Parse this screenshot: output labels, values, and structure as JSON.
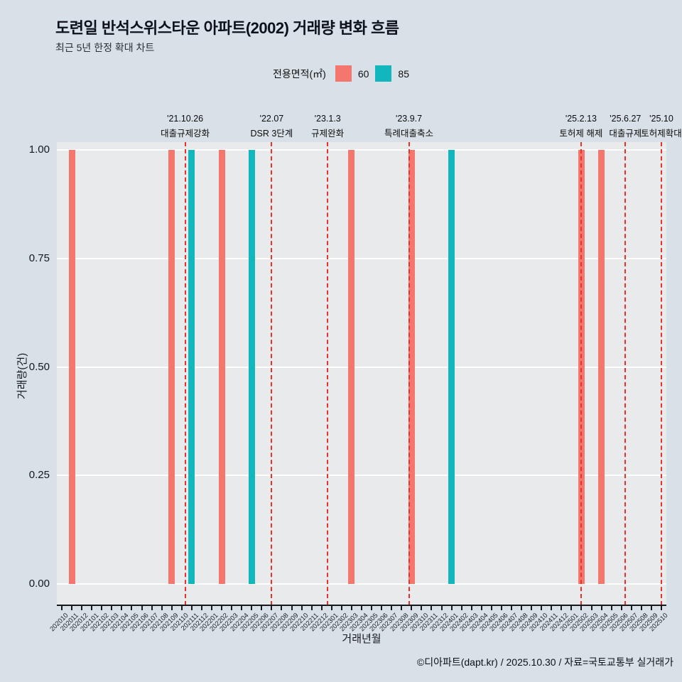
{
  "header": {
    "title": "도련일 반석스위스타운 아파트(2002) 거래량 변화 흐름",
    "subtitle": "최근 5년 한정 확대 차트"
  },
  "legend": {
    "title": "전용면적(㎡)",
    "items": [
      {
        "label": "60",
        "color": "#f4766c"
      },
      {
        "label": "85",
        "color": "#12b6bd"
      }
    ]
  },
  "axes": {
    "y_title": "거래량(건)",
    "x_title": "거래년월"
  },
  "footer": {
    "credit": "©디아파트(dapt.kr) / 2025.10.30 / 자료=국토교통부 실거래가"
  },
  "colors": {
    "background": "#d9e1e8",
    "panel": "#e8eaec",
    "gridline": "#ffffff",
    "axis": "#16181c",
    "annotation_line": "#e8332c",
    "bar_60": "#f4766c",
    "bar_85": "#12b6bd"
  },
  "chart_data": {
    "type": "bar",
    "title": "도련일 반석스위스타운 아파트(2002) 거래량 변화 흐름",
    "xlabel": "거래년월",
    "ylabel": "거래량(건)",
    "ylim": [
      0,
      1
    ],
    "grid": true,
    "legend_position": "top-center",
    "y_ticks": [
      {
        "value": 1.0,
        "label": "1.00"
      },
      {
        "value": 0.75,
        "label": "0.75"
      },
      {
        "value": 0.5,
        "label": "0.50"
      },
      {
        "value": 0.25,
        "label": "0.25"
      },
      {
        "value": 0.0,
        "label": "0.00"
      }
    ],
    "x_categories": [
      "202010",
      "202011",
      "202012",
      "202101",
      "202102",
      "202103",
      "202104",
      "202105",
      "202106",
      "202107",
      "202108",
      "202109",
      "202110",
      "202111",
      "202112",
      "202201",
      "202202",
      "202203",
      "202204",
      "202205",
      "202206",
      "202207",
      "202208",
      "202209",
      "202210",
      "202211",
      "202212",
      "202301",
      "202302",
      "202303",
      "202304",
      "202305",
      "202306",
      "202307",
      "202308",
      "202309",
      "202310",
      "202311",
      "202312",
      "202401",
      "202402",
      "202403",
      "202404",
      "202405",
      "202406",
      "202407",
      "202408",
      "202409",
      "202410",
      "202411",
      "202412",
      "202501",
      "202502",
      "202503",
      "202504",
      "202505",
      "202506",
      "202507",
      "202508",
      "202509",
      "202510"
    ],
    "series": [
      {
        "name": "60",
        "color": "#f4766c",
        "points": [
          {
            "month": "202011",
            "value": 1
          },
          {
            "month": "202109",
            "value": 1
          },
          {
            "month": "202202",
            "value": 1
          },
          {
            "month": "202303",
            "value": 1
          },
          {
            "month": "202309",
            "value": 1
          },
          {
            "month": "202502",
            "value": 1
          },
          {
            "month": "202504",
            "value": 1
          }
        ]
      },
      {
        "name": "85",
        "color": "#12b6bd",
        "points": [
          {
            "month": "202111",
            "value": 1
          },
          {
            "month": "202205",
            "value": 1
          },
          {
            "month": "202401",
            "value": 1
          }
        ]
      }
    ],
    "annotations": [
      {
        "date": "'21.10.26",
        "event": "대출규제강화",
        "pos": 12.84
      },
      {
        "date": "'22.07",
        "event": "DSR 3단계",
        "pos": 21.5
      },
      {
        "date": "'23.1.3",
        "event": "규제완화",
        "pos": 27.1
      },
      {
        "date": "'23.9.7",
        "event": "특례대출축소",
        "pos": 35.23
      },
      {
        "date": "'25.2.13",
        "event": "토허제 해제",
        "pos": 52.46
      },
      {
        "date": "'25.6.27",
        "event": "대출규제",
        "pos": 56.9
      },
      {
        "date": "'25.10",
        "event": "토허제확대",
        "pos": 60.5
      }
    ]
  }
}
